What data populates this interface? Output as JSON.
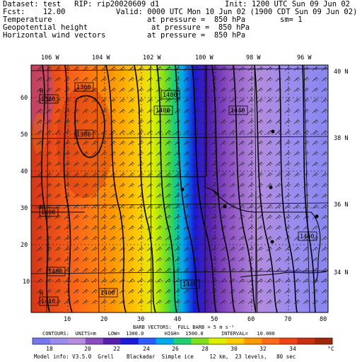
{
  "header": {
    "dataset": "Dataset: test   RIP: rip20020609 d1",
    "init": "Init: 1200 UTC Sun 09 Jun 02",
    "fcst": "Fcst:    12.00",
    "valid": "Valid: 0000 UTC Mon 10 Jun 02 (1900 CDT Sun 09 Jun 02)",
    "fields": [
      {
        "name": "Temperature",
        "level": "at pressure =  850 hPa",
        "extra": "sm= 1"
      },
      {
        "name": "Geopotential height",
        "level": "at pressure =  850 hPa",
        "extra": ""
      },
      {
        "name": "Horizontal wind vectors",
        "level": "at pressure =  850 hPa",
        "extra": ""
      }
    ]
  },
  "map": {
    "top_lon_labels": [
      "106 W",
      "104 W",
      "102 W",
      "100 W",
      "98 W",
      "96 W"
    ],
    "right_lat_labels": [
      "40 N",
      "38 N",
      "36 N",
      "34 N"
    ],
    "left_y_ticks": [
      "60",
      "50",
      "40",
      "30",
      "20",
      "10"
    ],
    "bottom_x_ticks": [
      "10",
      "20",
      "30",
      "40",
      "50",
      "60",
      "70",
      "80"
    ],
    "height_labels": [
      "1360",
      "1380",
      "1380",
      "1400",
      "1400",
      "1440",
      "1400",
      "1440",
      "1400",
      "1410",
      "1460"
    ],
    "highs": [
      "H",
      "H",
      "H"
    ]
  },
  "footer": {
    "barb_line": "BARB VECTORS:  FULL BARB = 5 m s⁻¹",
    "contour_line": "CONTOURS:  UNITS=m    LOW=  1300.0       HIGH=  1500.0      INTERVAL=   10.000",
    "colorbar_labels": [
      "18",
      "20",
      "22",
      "24",
      "26",
      "28",
      "30",
      "32",
      "34"
    ],
    "colorbar_unit": "°C",
    "model_info": "Model info: V3.5.0  Grell    Blackadar  Simple ice     12 km,  23 levels,   80 sec"
  },
  "colors": {
    "colorbar": [
      "#7777ee",
      "#9a8cee",
      "#b48cdd",
      "#8a4cc0",
      "#5520aa",
      "#1a1ad8",
      "#2a5cff",
      "#00a8ee",
      "#1fcf70",
      "#7ee01c",
      "#ddee00",
      "#ffcc00",
      "#ff9900",
      "#ff6a18",
      "#ee4415",
      "#c83010",
      "#a02808"
    ]
  }
}
